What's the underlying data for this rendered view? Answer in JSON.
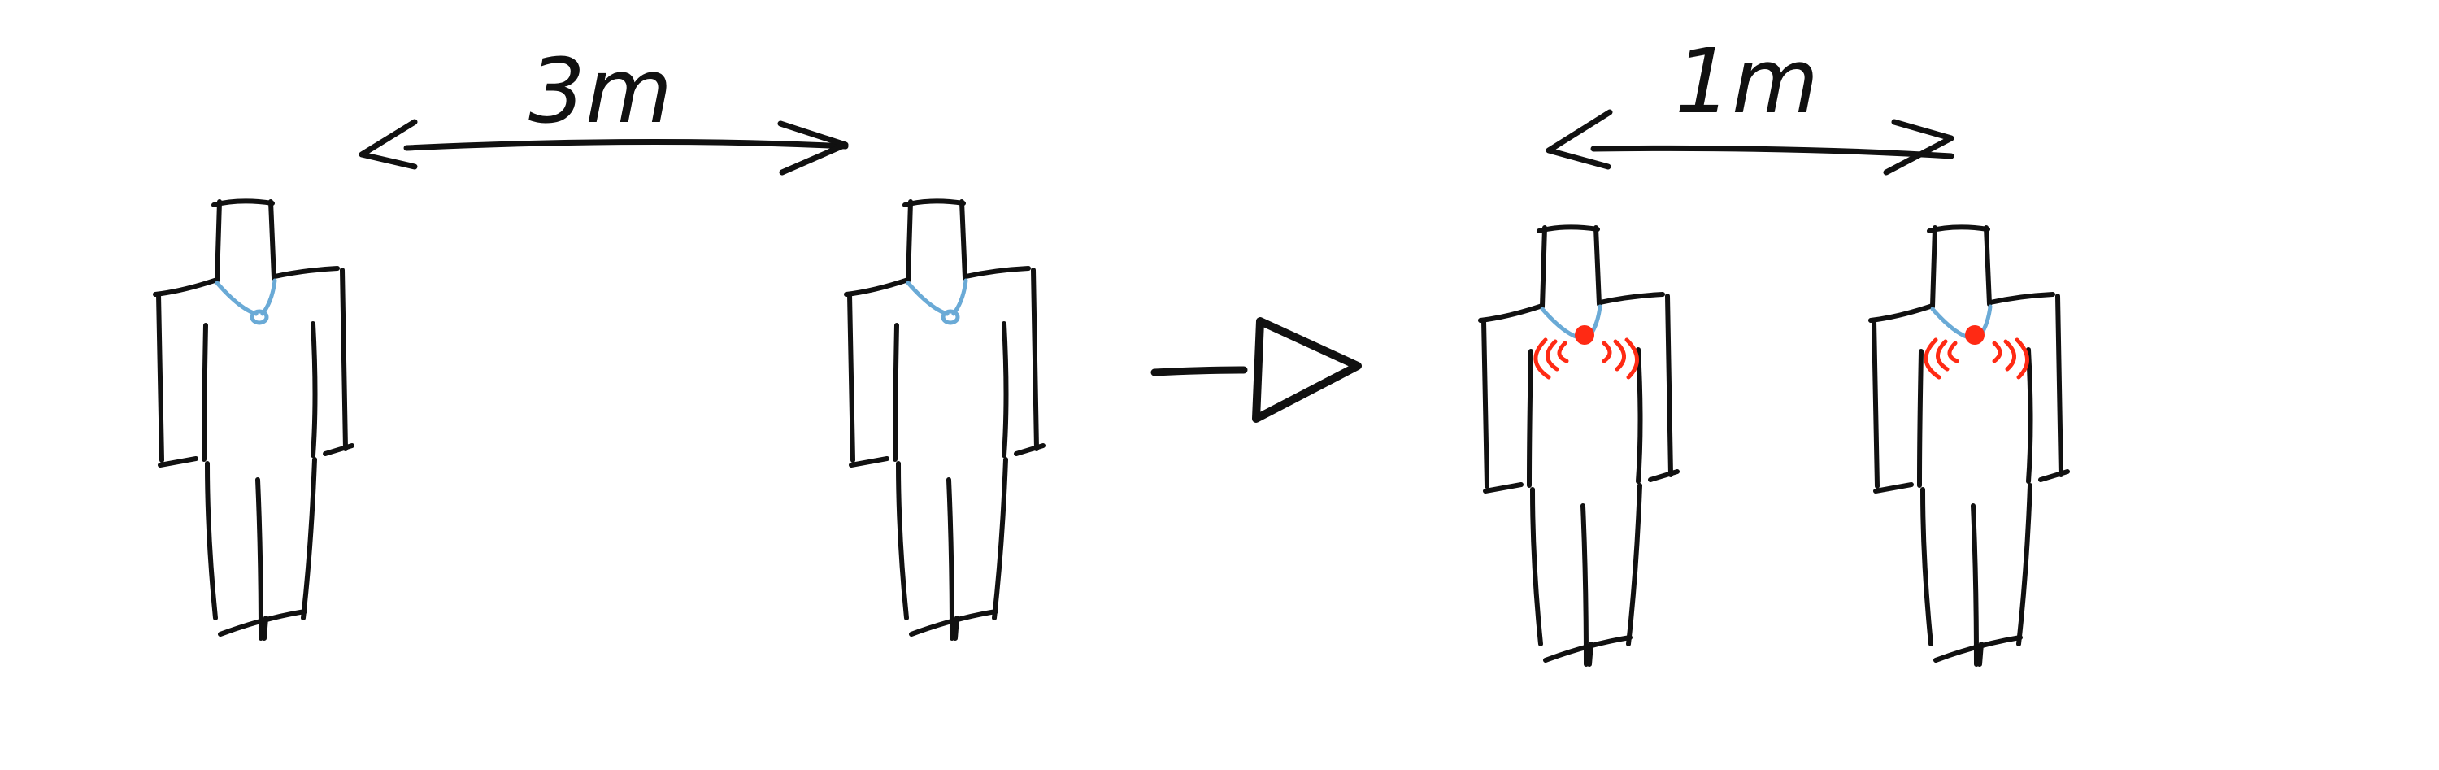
{
  "diagram": {
    "before": {
      "distance_label": "3m"
    },
    "after": {
      "distance_label": "1m"
    }
  },
  "colors": {
    "ink": "#111111",
    "necklace": "#6aaad6",
    "alert": "#ff2a14"
  }
}
